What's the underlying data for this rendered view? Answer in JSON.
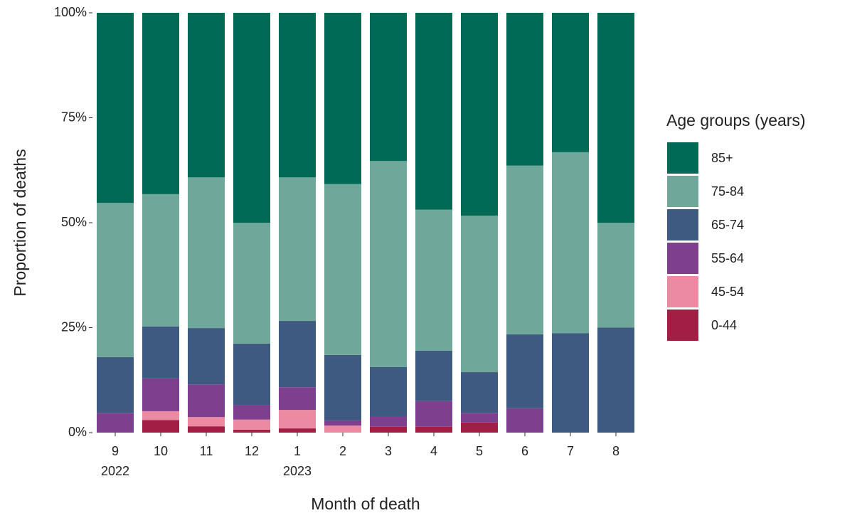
{
  "chart_data": {
    "type": "stacked_bar",
    "x_label": "Month of death",
    "y_label": "Proportion of deaths",
    "categories": [
      "9",
      "10",
      "11",
      "12",
      "1",
      "2",
      "3",
      "4",
      "5",
      "6",
      "7",
      "8"
    ],
    "x_sublabels": [
      "2022",
      null,
      null,
      null,
      "2023",
      null,
      null,
      null,
      null,
      null,
      null,
      null
    ],
    "legend_title": "Age groups (years)",
    "series": [
      {
        "name": "0-44",
        "color": "#a31e45",
        "values": [
          0,
          3.0,
          1.5,
          0.7,
          1.0,
          0,
          1.4,
          1.4,
          2.4,
          0,
          0,
          0
        ]
      },
      {
        "name": "45-54",
        "color": "#eb8aa0",
        "values": [
          0,
          2.1,
          2.2,
          2.4,
          4.4,
          1.7,
          0,
          0,
          0,
          0,
          0,
          0
        ]
      },
      {
        "name": "55-64",
        "color": "#7e3f8f",
        "values": [
          4.7,
          7.8,
          7.8,
          3.5,
          5.4,
          1.2,
          2.5,
          6.1,
          2.3,
          5.8,
          0,
          0
        ]
      },
      {
        "name": "65-74",
        "color": "#3e5a80",
        "values": [
          13.3,
          12.4,
          13.4,
          14.6,
          15.8,
          15.6,
          11.7,
          12.0,
          9.7,
          17.6,
          23.7,
          25.0
        ]
      },
      {
        "name": "75-84",
        "color": "#6fa79b",
        "values": [
          36.7,
          31.5,
          35.9,
          28.8,
          34.2,
          40.7,
          49.1,
          33.6,
          37.3,
          40.2,
          43.1,
          25.0
        ]
      },
      {
        "name": "85+",
        "color": "#006a56",
        "values": [
          45.3,
          43.2,
          39.2,
          50.0,
          39.2,
          40.8,
          35.3,
          46.9,
          48.3,
          36.4,
          33.2,
          50.0
        ]
      }
    ],
    "ylim": [
      0,
      100
    ],
    "yticks": [
      {
        "value": 0,
        "label": "0%"
      },
      {
        "value": 25,
        "label": "25%"
      },
      {
        "value": 50,
        "label": "50%"
      },
      {
        "value": 75,
        "label": "75%"
      },
      {
        "value": 100,
        "label": "100%"
      }
    ],
    "legend_position": "right"
  }
}
